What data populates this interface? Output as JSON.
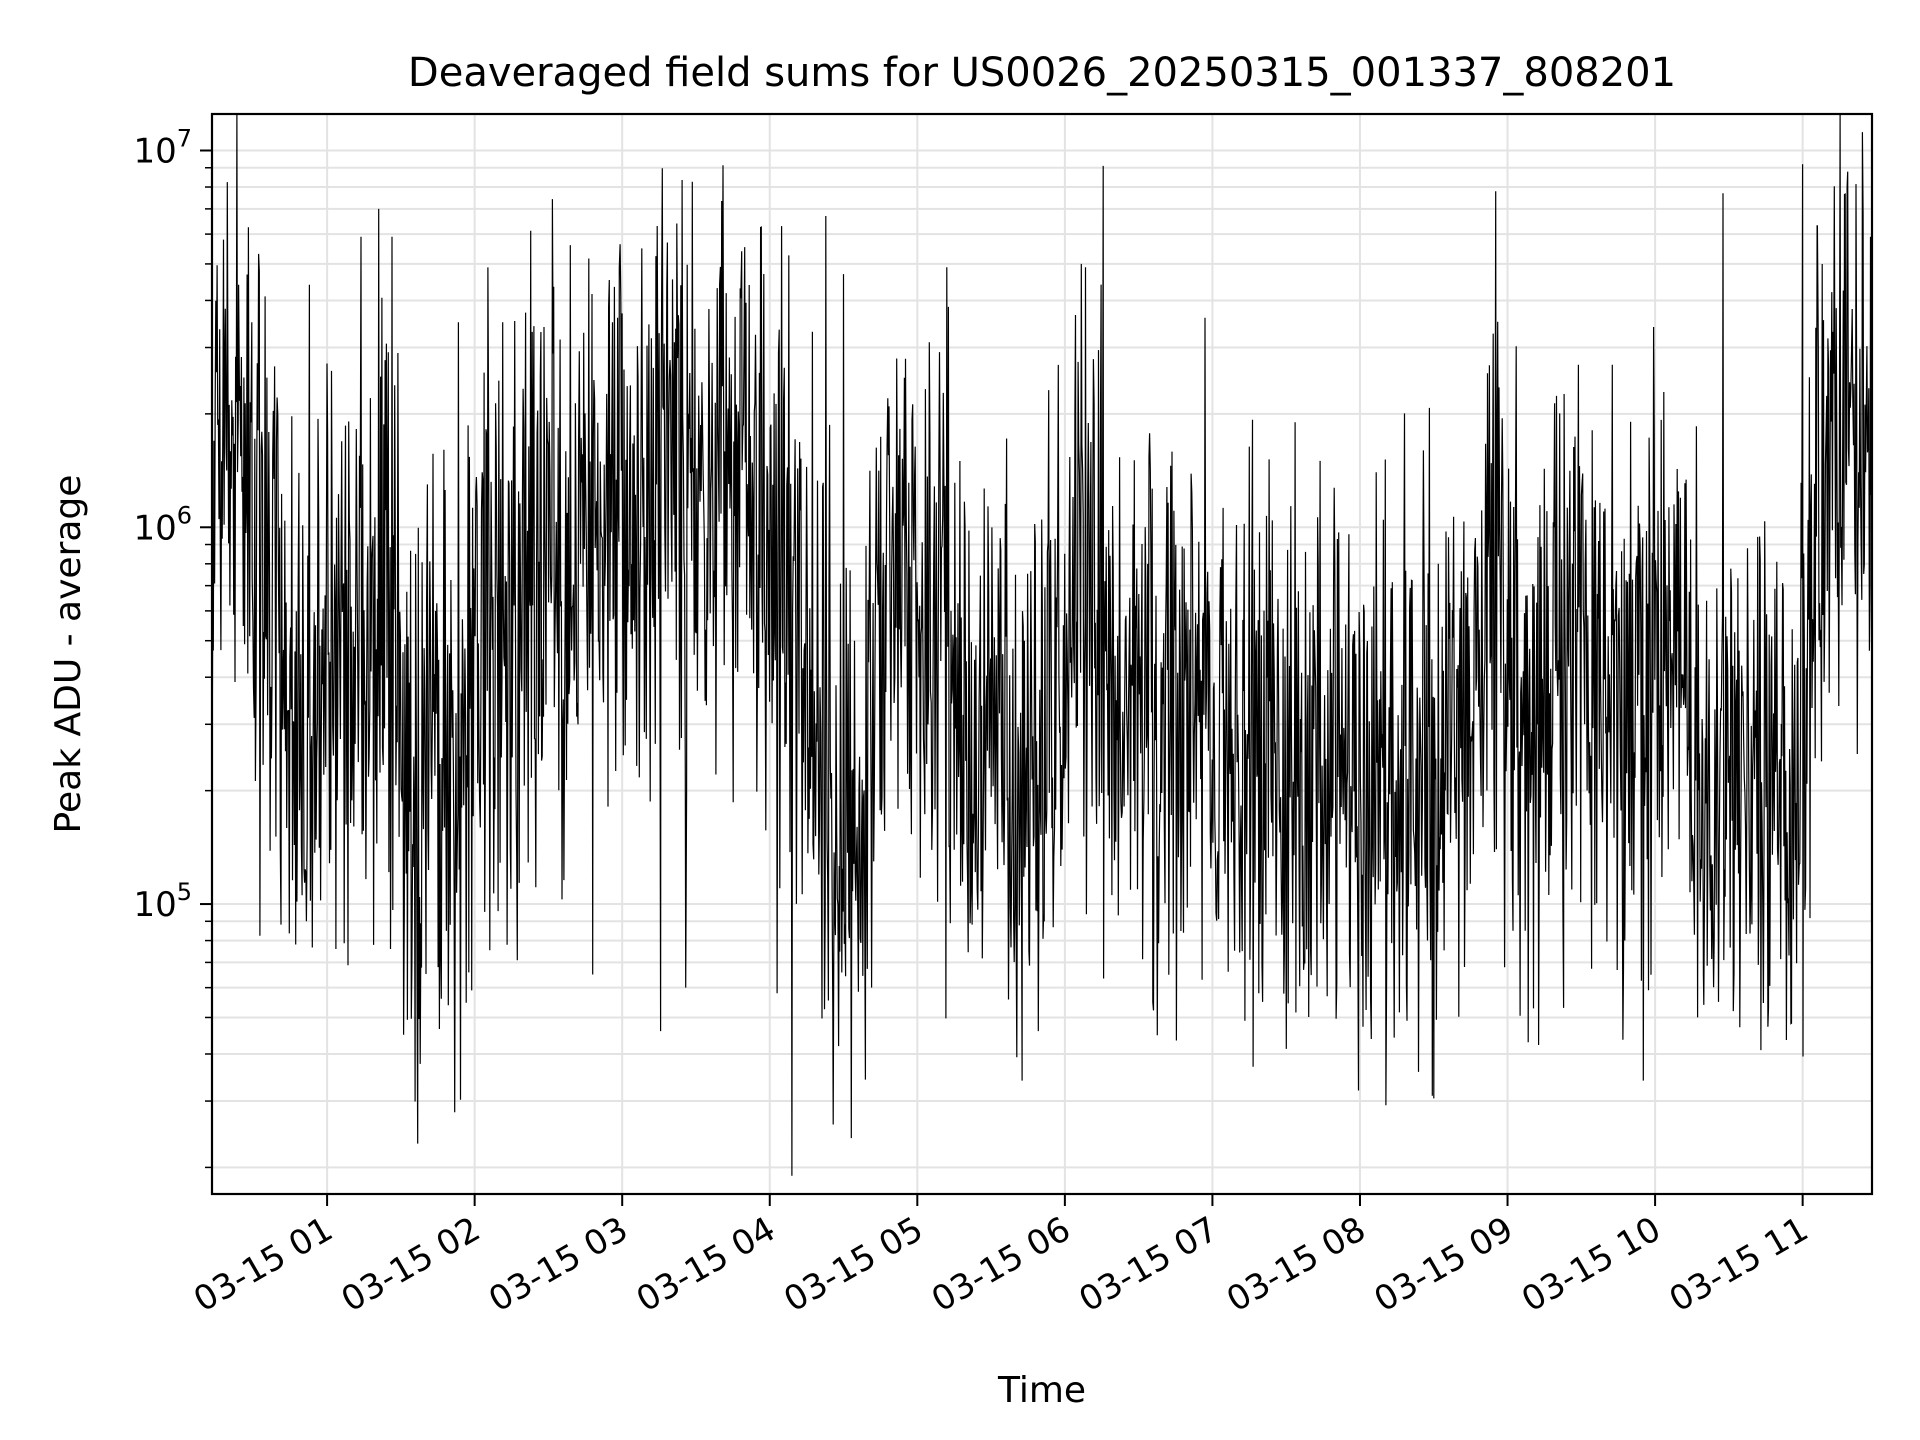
{
  "chart_data": {
    "type": "line",
    "title": "Deaveraged field sums for US0026_20250315_001337_808201",
    "xlabel": "Time",
    "ylabel": "Peak ADU - average",
    "yscale": "log",
    "ylim": [
      17000,
      12500000
    ],
    "xlim": [
      0.22,
      11.47
    ],
    "x_unit": "hours after 2025-03-15 00:00",
    "x_ticks": [
      {
        "value": 1,
        "label": "03-15 01"
      },
      {
        "value": 2,
        "label": "03-15 02"
      },
      {
        "value": 3,
        "label": "03-15 03"
      },
      {
        "value": 4,
        "label": "03-15 04"
      },
      {
        "value": 5,
        "label": "03-15 05"
      },
      {
        "value": 6,
        "label": "03-15 06"
      },
      {
        "value": 7,
        "label": "03-15 07"
      },
      {
        "value": 8,
        "label": "03-15 08"
      },
      {
        "value": 9,
        "label": "03-15 09"
      },
      {
        "value": 10,
        "label": "03-15 10"
      },
      {
        "value": 11,
        "label": "03-15 11"
      }
    ],
    "y_ticks": [
      {
        "value": 100000,
        "base": "10",
        "exp": "5"
      },
      {
        "value": 1000000,
        "base": "10",
        "exp": "6"
      },
      {
        "value": 10000000,
        "base": "10",
        "exp": "7"
      }
    ],
    "grid": true,
    "line_color": "#000000",
    "series": [
      {
        "x": [
          0.22,
          0.3,
          0.4,
          0.5,
          0.6,
          0.7,
          0.8,
          0.9,
          1.0,
          1.1,
          1.2,
          1.3,
          1.4,
          1.5,
          1.6,
          1.7,
          1.8,
          1.9,
          2.0,
          2.1,
          2.2,
          2.3,
          2.4,
          2.5,
          2.6,
          2.7,
          2.8,
          2.9,
          3.0,
          3.1,
          3.2,
          3.3,
          3.4,
          3.5,
          3.6,
          3.7,
          3.8,
          3.9,
          4.0,
          4.1,
          4.2,
          4.3,
          4.4,
          4.5,
          4.6,
          4.7,
          4.8,
          4.9,
          5.0,
          5.1,
          5.2,
          5.3,
          5.4,
          5.5,
          5.6,
          5.7,
          5.8,
          5.9,
          6.0,
          6.1,
          6.2,
          6.3,
          6.4,
          6.5,
          6.6,
          6.7,
          6.8,
          6.9,
          7.0,
          7.1,
          7.2,
          7.3,
          7.4,
          7.5,
          7.6,
          7.7,
          7.8,
          7.9,
          8.0,
          8.1,
          8.2,
          8.3,
          8.4,
          8.5,
          8.6,
          8.7,
          8.8,
          8.9,
          9.0,
          9.1,
          9.2,
          9.3,
          9.4,
          9.5,
          9.6,
          9.7,
          9.8,
          9.9,
          10.0,
          10.1,
          10.2,
          10.3,
          10.4,
          10.5,
          10.6,
          10.7,
          10.8,
          10.9,
          11.0,
          11.1,
          11.2,
          11.3,
          11.4,
          11.47
        ],
        "y": [
          1200000,
          1800000,
          1500000,
          1100000,
          700000,
          400000,
          280000,
          300000,
          450000,
          550000,
          600000,
          500000,
          900000,
          300000,
          200000,
          250000,
          220000,
          180000,
          600000,
          800000,
          650000,
          500000,
          700000,
          900000,
          500000,
          1100000,
          1300000,
          1200000,
          1400000,
          1000000,
          1300000,
          1100000,
          1500000,
          1200000,
          900000,
          1400000,
          1300000,
          1100000,
          900000,
          600000,
          400000,
          300000,
          250000,
          150000,
          120000,
          300000,
          700000,
          900000,
          600000,
          500000,
          400000,
          350000,
          300000,
          250000,
          220000,
          200000,
          300000,
          350000,
          450000,
          700000,
          600000,
          400000,
          500000,
          450000,
          400000,
          350000,
          380000,
          300000,
          280000,
          250000,
          260000,
          300000,
          280000,
          250000,
          230000,
          220000,
          260000,
          280000,
          250000,
          230000,
          220000,
          250000,
          260000,
          250000,
          270000,
          300000,
          450000,
          900000,
          300000,
          450000,
          350000,
          400000,
          450000,
          400000,
          380000,
          350000,
          300000,
          400000,
          420000,
          380000,
          350000,
          200000,
          150000,
          180000,
          250000,
          220000,
          200000,
          250000,
          220000,
          1200000,
          1800000,
          2000000,
          1800000,
          1600000
        ],
        "spikes_high": [
          [
            0.31,
            3800000
          ],
          [
            0.4,
            4400000
          ],
          [
            0.49,
            3500000
          ],
          [
            0.58,
            4100000
          ],
          [
            0.88,
            4400000
          ],
          [
            1.03,
            2600000
          ],
          [
            1.23,
            5900000
          ],
          [
            1.35,
            7000000
          ],
          [
            1.44,
            5900000
          ],
          [
            1.6,
            850000
          ],
          [
            1.68,
            1300000
          ],
          [
            1.89,
            3500000
          ],
          [
            2.19,
            3500000
          ],
          [
            2.39,
            3300000
          ],
          [
            2.47,
            3400000
          ],
          [
            2.98,
            4900000
          ],
          [
            3.37,
            6400000
          ],
          [
            3.66,
            4400000
          ],
          [
            3.81,
            5400000
          ],
          [
            4.08,
            6300000
          ],
          [
            4.38,
            6700000
          ],
          [
            4.5,
            4700000
          ],
          [
            4.92,
            2800000
          ],
          [
            5.2,
            4900000
          ],
          [
            6.14,
            4900000
          ],
          [
            6.26,
            9100000
          ],
          [
            6.95,
            3600000
          ],
          [
            7.56,
            1900000
          ],
          [
            7.73,
            1500000
          ],
          [
            8.11,
            1400000
          ],
          [
            8.43,
            1600000
          ],
          [
            8.92,
            7800000
          ],
          [
            9.48,
            2700000
          ],
          [
            9.71,
            2700000
          ],
          [
            9.99,
            3400000
          ],
          [
            10.46,
            7700000
          ],
          [
            11.0,
            9200000
          ],
          [
            11.1,
            6300000
          ],
          [
            11.46,
            5900000
          ]
        ],
        "spikes_low": [
          [
            0.86,
            90000
          ],
          [
            1.06,
            76000
          ],
          [
            1.43,
            76000
          ],
          [
            1.98,
            59000
          ],
          [
            2.22,
            78000
          ],
          [
            2.8,
            65000
          ],
          [
            3.26,
            46000
          ],
          [
            3.43,
            60000
          ],
          [
            4.05,
            58000
          ],
          [
            4.15,
            19000
          ],
          [
            4.43,
            26000
          ],
          [
            4.69,
            60000
          ],
          [
            5.71,
            34000
          ],
          [
            5.82,
            46000
          ],
          [
            6.93,
            63000
          ],
          [
            7.22,
            49000
          ],
          [
            7.34,
            55000
          ],
          [
            7.99,
            32000
          ],
          [
            8.49,
            31000
          ],
          [
            8.98,
            68000
          ],
          [
            9.14,
            43000
          ],
          [
            9.38,
            53000
          ],
          [
            9.92,
            34000
          ],
          [
            10.33,
            54000
          ],
          [
            10.43,
            55000
          ],
          [
            10.53,
            52000
          ]
        ]
      }
    ]
  }
}
